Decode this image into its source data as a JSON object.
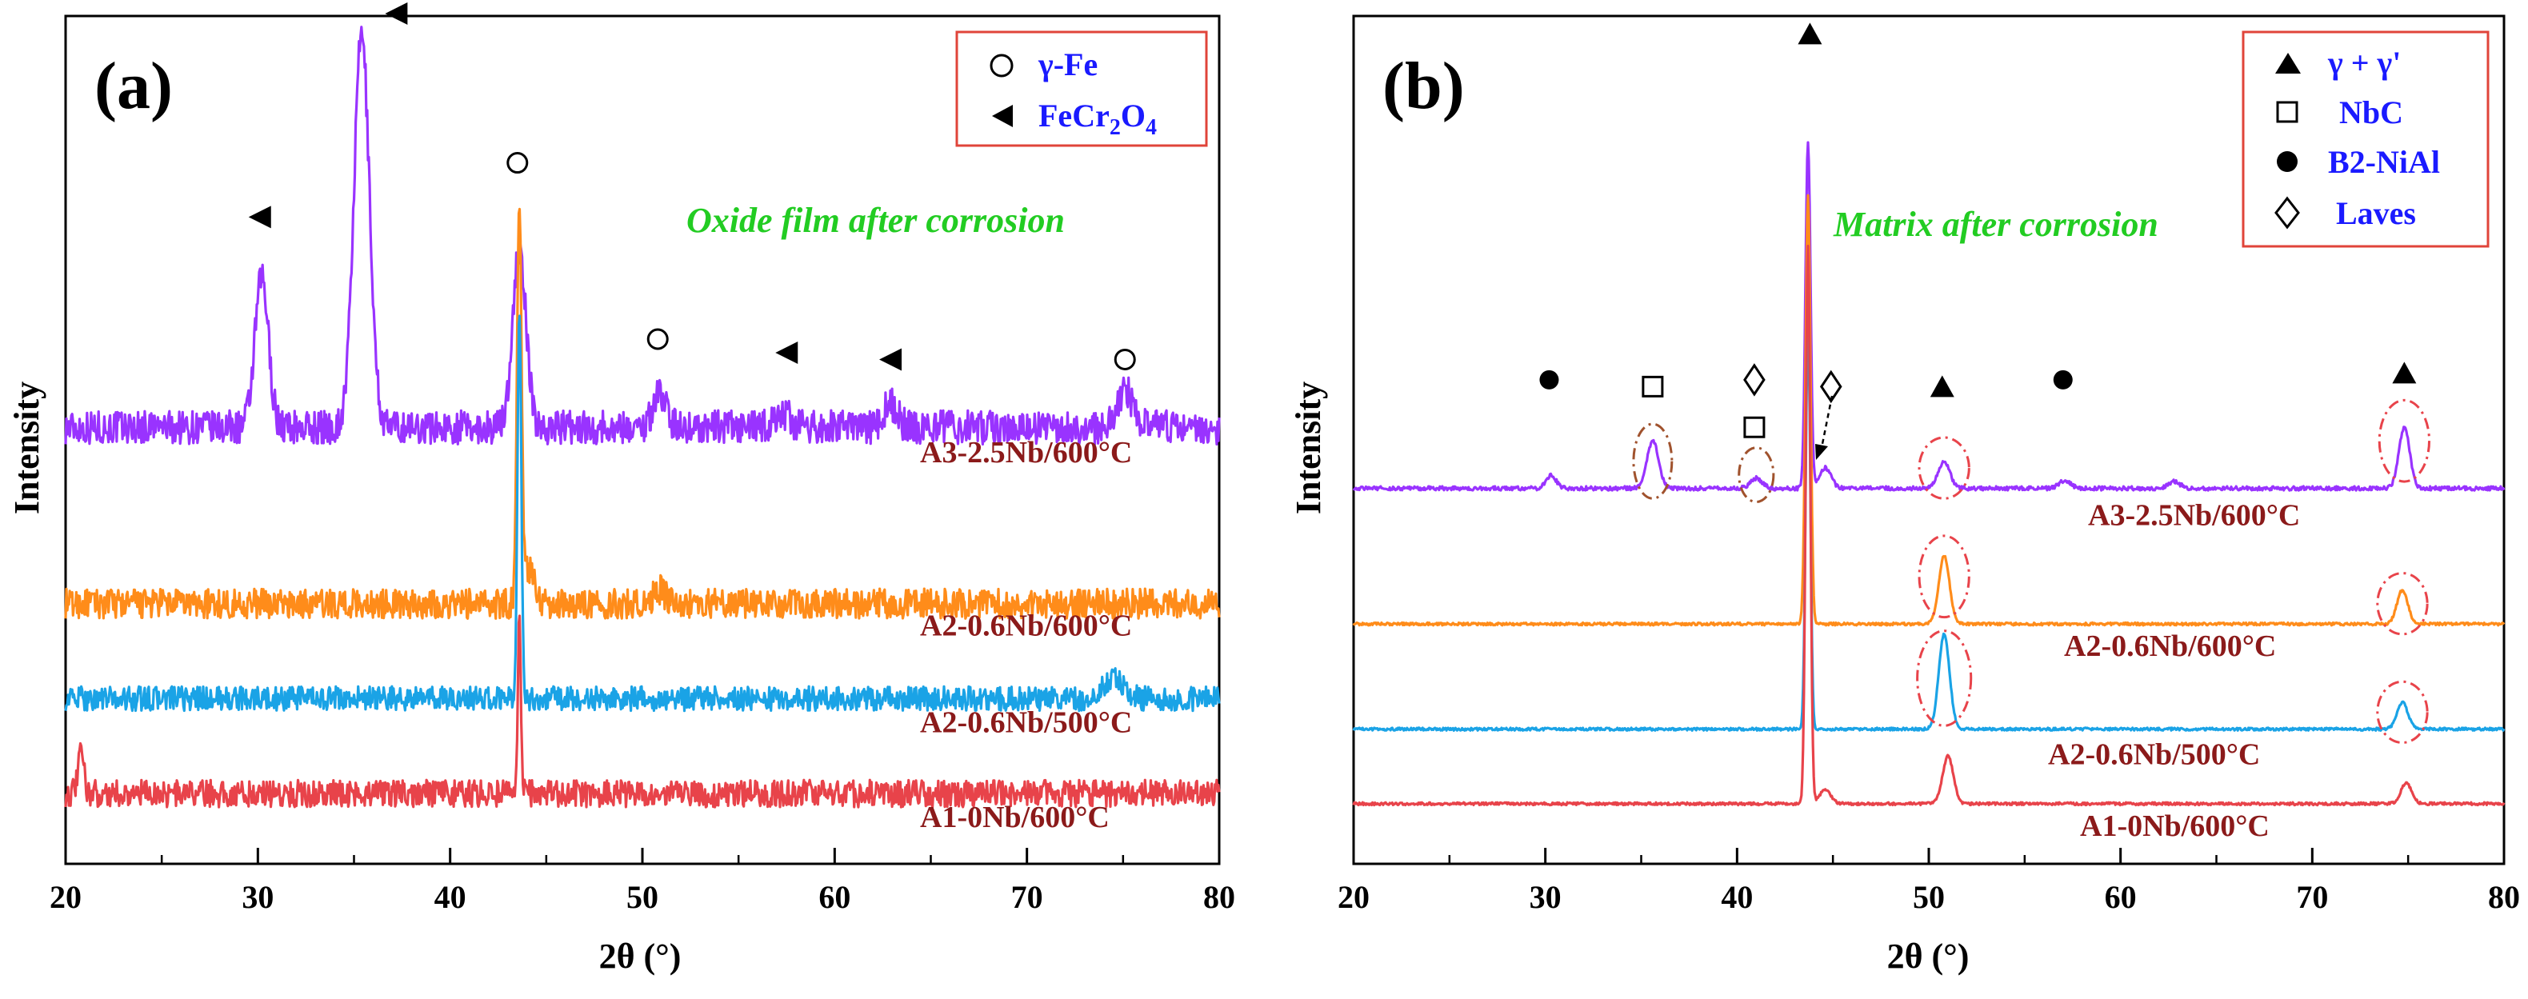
{
  "figure": {
    "panels": [
      {
        "label": "(a)",
        "annotation": "Oxide film after corrosion",
        "annotation_color": "#22cc22",
        "xlabel": "2θ (°)",
        "ylabel": "Intensity",
        "legend": [
          {
            "symbol": "circle-open",
            "label": "γ-Fe"
          },
          {
            "symbol": "triangle-left",
            "label": "FeCr",
            "sub1": "2",
            "mid": "O",
            "sub2": "4"
          }
        ]
      },
      {
        "label": "(b)",
        "annotation": "Matrix after corrosion",
        "annotation_color": "#22cc22",
        "xlabel": "2θ (°)",
        "ylabel": "Intensity",
        "legend": [
          {
            "symbol": "triangle-up",
            "label": "γ + γ'"
          },
          {
            "symbol": "square-open",
            "label": "NbC"
          },
          {
            "symbol": "circle-filled",
            "label": "B2-NiAl"
          },
          {
            "symbol": "diamond-open",
            "label": "Laves"
          }
        ]
      }
    ]
  },
  "chart_data": [
    {
      "type": "line",
      "title": "(a)",
      "xlabel": "2θ (°)",
      "ylabel": "Intensity",
      "xlim": [
        20,
        80
      ],
      "xticks": [
        20,
        30,
        40,
        50,
        60,
        70,
        80
      ],
      "yticks_shown": false,
      "legend_position": "top-right",
      "series": [
        {
          "name": "A3-2.5Nb/600°C",
          "color": "#9933ff",
          "baseline": 0.62,
          "noise": 0.025,
          "peaks": [
            {
              "x": 30.2,
              "h": 0.22,
              "w": 0.35
            },
            {
              "x": 35.4,
              "h": 0.58,
              "w": 0.4
            },
            {
              "x": 43.6,
              "h": 0.26,
              "w": 0.35
            },
            {
              "x": 50.9,
              "h": 0.05,
              "w": 0.35
            },
            {
              "x": 57.3,
              "h": 0.02,
              "w": 0.4
            },
            {
              "x": 62.9,
              "h": 0.035,
              "w": 0.35
            },
            {
              "x": 75.1,
              "h": 0.055,
              "w": 0.4
            }
          ]
        },
        {
          "name": "A2-0.6Nb/600°C",
          "color": "#ff8c1a",
          "baseline": 0.36,
          "noise": 0.022,
          "peaks": [
            {
              "x": 43.6,
              "h": 0.57,
              "w": 0.12
            },
            {
              "x": 44.1,
              "h": 0.05,
              "w": 0.3
            },
            {
              "x": 50.9,
              "h": 0.02,
              "w": 0.3
            }
          ]
        },
        {
          "name": "A2-0.6Nb/500°C",
          "color": "#1aa3e6",
          "baseline": 0.22,
          "noise": 0.018,
          "peaks": [
            {
              "x": 43.6,
              "h": 0.58,
              "w": 0.1
            },
            {
              "x": 74.5,
              "h": 0.03,
              "w": 0.5
            }
          ]
        },
        {
          "name": "A1-0Nb/600°C",
          "color": "#e8434a",
          "baseline": 0.08,
          "noise": 0.02,
          "peaks": [
            {
              "x": 20.8,
              "h": 0.06,
              "w": 0.15
            },
            {
              "x": 43.6,
              "h": 0.25,
              "w": 0.08
            }
          ]
        }
      ],
      "markers": [
        {
          "symbol": "triangle-left",
          "x": 30.1,
          "y": 0.93
        },
        {
          "symbol": "triangle-left",
          "x": 37.2,
          "y": 1.23
        },
        {
          "symbol": "circle-open",
          "x": 43.5,
          "y": 1.01
        },
        {
          "symbol": "circle-open",
          "x": 50.8,
          "y": 0.75
        },
        {
          "symbol": "triangle-left",
          "x": 57.5,
          "y": 0.73
        },
        {
          "symbol": "triangle-left",
          "x": 62.9,
          "y": 0.72
        },
        {
          "symbol": "circle-open",
          "x": 75.1,
          "y": 0.72
        }
      ]
    },
    {
      "type": "line",
      "title": "(b)",
      "xlabel": "2θ (°)",
      "ylabel": "Intensity",
      "xlim": [
        20,
        80
      ],
      "xticks": [
        20,
        30,
        40,
        50,
        60,
        70,
        80
      ],
      "yticks_shown": false,
      "legend_position": "top-right",
      "series": [
        {
          "name": "A3-2.5Nb/600°C",
          "color": "#9933ff",
          "baseline": 0.53,
          "noise": 0.003,
          "peaks": [
            {
              "x": 30.3,
              "h": 0.02,
              "w": 0.25
            },
            {
              "x": 35.6,
              "h": 0.07,
              "w": 0.3
            },
            {
              "x": 41.0,
              "h": 0.015,
              "w": 0.3
            },
            {
              "x": 43.7,
              "h": 0.51,
              "w": 0.13
            },
            {
              "x": 44.6,
              "h": 0.03,
              "w": 0.3
            },
            {
              "x": 50.8,
              "h": 0.04,
              "w": 0.3
            },
            {
              "x": 57.1,
              "h": 0.012,
              "w": 0.3
            },
            {
              "x": 62.8,
              "h": 0.01,
              "w": 0.3
            },
            {
              "x": 74.8,
              "h": 0.09,
              "w": 0.28
            }
          ]
        },
        {
          "name": "A2-0.6Nb/600°C",
          "color": "#ff8c1a",
          "baseline": 0.33,
          "noise": 0.002,
          "peaks": [
            {
              "x": 43.7,
              "h": 0.63,
              "w": 0.13
            },
            {
              "x": 50.8,
              "h": 0.1,
              "w": 0.28
            },
            {
              "x": 74.7,
              "h": 0.05,
              "w": 0.28
            }
          ]
        },
        {
          "name": "A2-0.6Nb/500°C",
          "color": "#1aa3e6",
          "baseline": 0.175,
          "noise": 0.002,
          "peaks": [
            {
              "x": 43.7,
              "h": 0.6,
              "w": 0.12
            },
            {
              "x": 50.8,
              "h": 0.14,
              "w": 0.28
            },
            {
              "x": 74.7,
              "h": 0.04,
              "w": 0.28
            }
          ]
        },
        {
          "name": "A1-0Nb/600°C",
          "color": "#e8434a",
          "baseline": 0.065,
          "noise": 0.002,
          "peaks": [
            {
              "x": 43.7,
              "h": 0.82,
              "w": 0.12
            },
            {
              "x": 44.6,
              "h": 0.02,
              "w": 0.3
            },
            {
              "x": 51.0,
              "h": 0.07,
              "w": 0.28
            },
            {
              "x": 74.9,
              "h": 0.03,
              "w": 0.28
            }
          ]
        }
      ],
      "markers": [
        {
          "symbol": "triangle-up",
          "x": 43.8,
          "y": 1.2
        },
        {
          "symbol": "circle-filled",
          "x": 30.2,
          "y": 0.69
        },
        {
          "symbol": "square-open",
          "x": 35.6,
          "y": 0.68
        },
        {
          "symbol": "diamond-open",
          "x": 40.9,
          "y": 0.69
        },
        {
          "symbol": "square-open",
          "x": 40.9,
          "y": 0.62
        },
        {
          "symbol": "diamond-open",
          "x": 44.9,
          "y": 0.68
        },
        {
          "symbol": "triangle-up",
          "x": 50.7,
          "y": 0.68
        },
        {
          "symbol": "circle-filled",
          "x": 57.0,
          "y": 0.69
        },
        {
          "symbol": "triangle-up",
          "x": 74.8,
          "y": 0.7
        }
      ],
      "ellipses": [
        {
          "x": 35.6,
          "y": 0.57,
          "rx": 1.0,
          "ry": 0.055,
          "color": "#a0522d"
        },
        {
          "x": 41.0,
          "y": 0.55,
          "rx": 0.9,
          "ry": 0.04,
          "color": "#a0522d"
        },
        {
          "x": 50.8,
          "y": 0.56,
          "rx": 1.3,
          "ry": 0.045,
          "color": "#e8434a"
        },
        {
          "x": 74.8,
          "y": 0.6,
          "rx": 1.3,
          "ry": 0.06,
          "color": "#e8434a"
        },
        {
          "x": 50.8,
          "y": 0.4,
          "rx": 1.3,
          "ry": 0.06,
          "color": "#e8434a"
        },
        {
          "x": 74.7,
          "y": 0.36,
          "rx": 1.3,
          "ry": 0.045,
          "color": "#e8434a"
        },
        {
          "x": 50.8,
          "y": 0.25,
          "rx": 1.4,
          "ry": 0.07,
          "color": "#e8434a"
        },
        {
          "x": 74.7,
          "y": 0.2,
          "rx": 1.3,
          "ry": 0.045,
          "color": "#e8434a"
        }
      ]
    }
  ]
}
